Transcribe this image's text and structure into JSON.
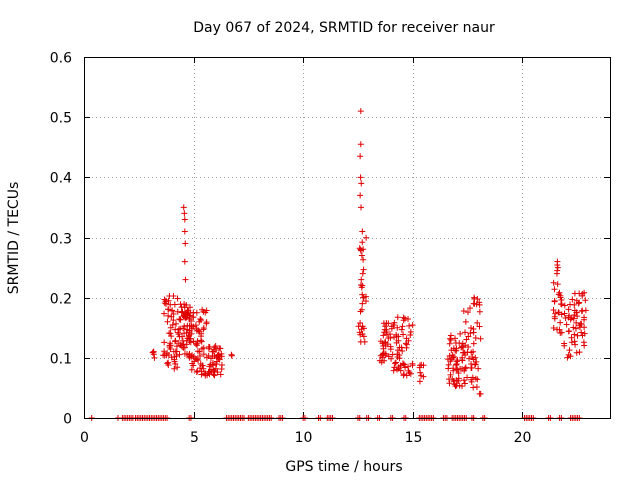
{
  "chart_data": {
    "type": "scatter",
    "title": "Day 067 of 2024, SRMTID for receiver naur",
    "xlabel": "GPS time / hours",
    "ylabel": "SRMTID / TECUs",
    "xlim": [
      0,
      24
    ],
    "ylim": [
      0,
      0.6
    ],
    "xticks": [
      0,
      5,
      10,
      15,
      20
    ],
    "xtick_labels": [
      "0",
      "5",
      "10",
      "15",
      "20"
    ],
    "yticks": [
      0,
      0.1,
      0.2,
      0.3,
      0.4,
      0.5,
      0.6
    ],
    "ytick_labels": [
      "0",
      "0.1",
      "0.2",
      "0.3",
      "0.4",
      "0.5",
      "0.6"
    ],
    "grid": true,
    "marker": "plus",
    "color": "#e00000",
    "series": [
      {
        "name": "SRMTID",
        "clusters": [
          {
            "x_range": [
              3.1,
              3.3
            ],
            "y_range": [
              0.09,
              0.12
            ],
            "n": 5
          },
          {
            "x_range": [
              3.6,
              4.3
            ],
            "y_range": [
              0.08,
              0.21
            ],
            "n": 60
          },
          {
            "x_range": [
              4.3,
              4.9
            ],
            "y_range": [
              0.1,
              0.19
            ],
            "n": 70
          },
          {
            "x_range": [
              4.9,
              5.6
            ],
            "y_range": [
              0.07,
              0.18
            ],
            "n": 60
          },
          {
            "x_range": [
              5.6,
              6.3
            ],
            "y_range": [
              0.07,
              0.12
            ],
            "n": 50
          },
          {
            "x_range": [
              6.7,
              6.8
            ],
            "y_range": [
              0.1,
              0.11
            ],
            "n": 2
          },
          {
            "x_range": [
              12.5,
              12.9
            ],
            "y_range": [
              0.12,
              0.3
            ],
            "n": 25
          },
          {
            "x_range": [
              13.5,
              14.0
            ],
            "y_range": [
              0.09,
              0.16
            ],
            "n": 35
          },
          {
            "x_range": [
              14.0,
              15.0
            ],
            "y_range": [
              0.07,
              0.17
            ],
            "n": 60
          },
          {
            "x_range": [
              15.3,
              15.5
            ],
            "y_range": [
              0.06,
              0.09
            ],
            "n": 8
          },
          {
            "x_range": [
              16.6,
              17.3
            ],
            "y_range": [
              0.05,
              0.14
            ],
            "n": 55
          },
          {
            "x_range": [
              17.3,
              18.1
            ],
            "y_range": [
              0.05,
              0.2
            ],
            "n": 55
          },
          {
            "x_range": [
              21.4,
              21.7
            ],
            "y_range": [
              0.14,
              0.26
            ],
            "n": 18
          },
          {
            "x_range": [
              21.7,
              22.9
            ],
            "y_range": [
              0.1,
              0.21
            ],
            "n": 70
          }
        ],
        "points": [
          [
            4.55,
            0.35
          ],
          [
            4.58,
            0.34
          ],
          [
            4.6,
            0.33
          ],
          [
            4.6,
            0.31
          ],
          [
            4.62,
            0.29
          ],
          [
            4.6,
            0.26
          ],
          [
            4.63,
            0.23
          ],
          [
            12.63,
            0.51
          ],
          [
            12.63,
            0.455
          ],
          [
            12.6,
            0.435
          ],
          [
            12.62,
            0.4
          ],
          [
            12.65,
            0.39
          ],
          [
            12.6,
            0.37
          ],
          [
            12.64,
            0.35
          ],
          [
            12.7,
            0.31
          ],
          [
            12.62,
            0.28
          ],
          [
            12.68,
            0.27
          ],
          [
            12.72,
            0.24
          ],
          [
            12.65,
            0.23
          ],
          [
            12.7,
            0.22
          ],
          [
            12.74,
            0.2
          ],
          [
            12.7,
            0.19
          ],
          [
            12.68,
            0.18
          ],
          [
            21.6,
            0.26
          ],
          [
            21.62,
            0.25
          ],
          [
            21.58,
            0.24
          ],
          [
            17.8,
            0.2
          ],
          [
            17.78,
            0.19
          ],
          [
            18.05,
            0.04
          ],
          [
            18.1,
            0.04
          ]
        ],
        "zero_ranges": [
          [
            0.35,
            0.35
          ],
          [
            1.55,
            1.6
          ],
          [
            1.75,
            2.25
          ],
          [
            2.35,
            3.8
          ],
          [
            4.8,
            4.95
          ],
          [
            6.5,
            7.3
          ],
          [
            7.5,
            8.6
          ],
          [
            8.9,
            9.1
          ],
          [
            10.0,
            10.1
          ],
          [
            10.7,
            10.8
          ],
          [
            11.1,
            11.4
          ],
          [
            12.5,
            12.6
          ],
          [
            12.9,
            13.0
          ],
          [
            13.4,
            13.5
          ],
          [
            14.0,
            14.1
          ],
          [
            14.6,
            14.7
          ],
          [
            15.3,
            16.0
          ],
          [
            16.4,
            16.6
          ],
          [
            16.8,
            17.5
          ],
          [
            17.7,
            17.8
          ],
          [
            18.2,
            18.3
          ],
          [
            20.1,
            20.5
          ],
          [
            21.2,
            21.3
          ],
          [
            21.7,
            21.8
          ],
          [
            22.2,
            22.6
          ]
        ]
      }
    ]
  }
}
